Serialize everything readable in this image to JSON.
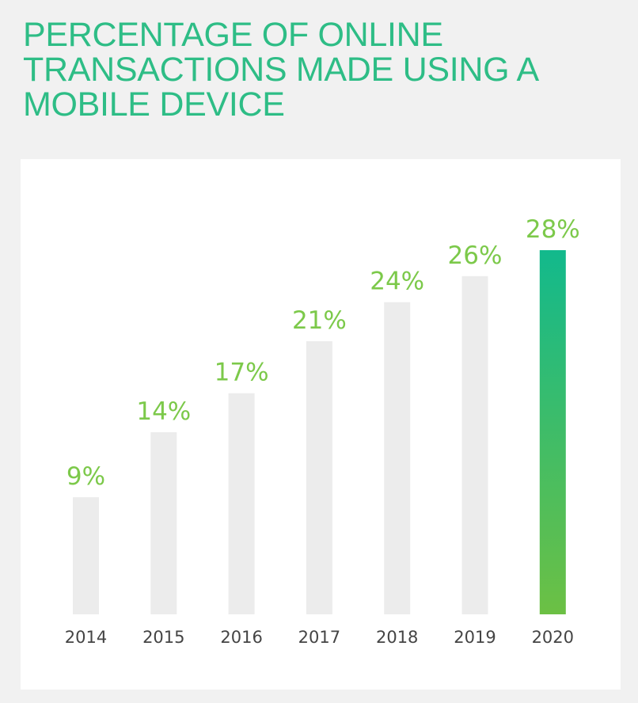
{
  "title": "PERCENTAGE OF ONLINE TRANSACTIONS MADE USING A MOBILE DEVICE",
  "colors": {
    "title": "#2ebd86",
    "value_label": "#7cc94a",
    "bar_default": "#ececec",
    "bar_highlight_top": "#12b98c",
    "bar_highlight_bottom": "#6cc044",
    "tick_label": "#444444"
  },
  "chart_data": {
    "type": "bar",
    "categories": [
      "2014",
      "2015",
      "2016",
      "2017",
      "2018",
      "2019",
      "2020"
    ],
    "values": [
      9,
      14,
      17,
      21,
      24,
      26,
      28
    ],
    "value_labels": [
      "9%",
      "14%",
      "17%",
      "21%",
      "24%",
      "26%",
      "28%"
    ],
    "highlight_category": "2020",
    "xlabel": "",
    "ylabel": "",
    "unit": "%",
    "ylim": [
      0,
      28
    ],
    "grid": false
  }
}
